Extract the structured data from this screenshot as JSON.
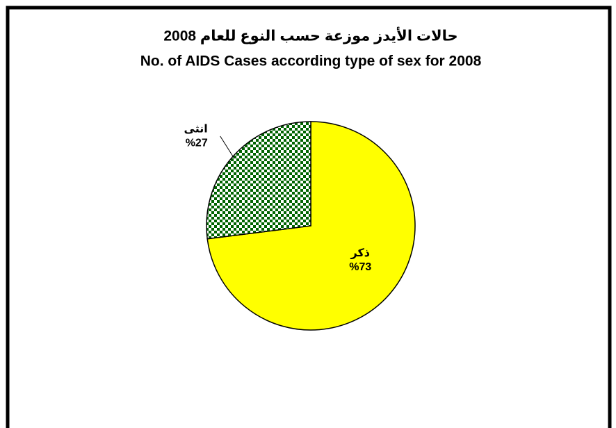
{
  "chart_data": {
    "type": "pie",
    "title": "حالات الأيدز موزعة حسب النوع للعام 2008",
    "subtitle": "No. of AIDS Cases according type of sex for 2008",
    "categories": [
      "ذكر",
      "انثى"
    ],
    "values": [
      73,
      27
    ],
    "value_labels": [
      "%73",
      "%27"
    ],
    "colors": [
      "#ffff00",
      "#006400"
    ]
  }
}
